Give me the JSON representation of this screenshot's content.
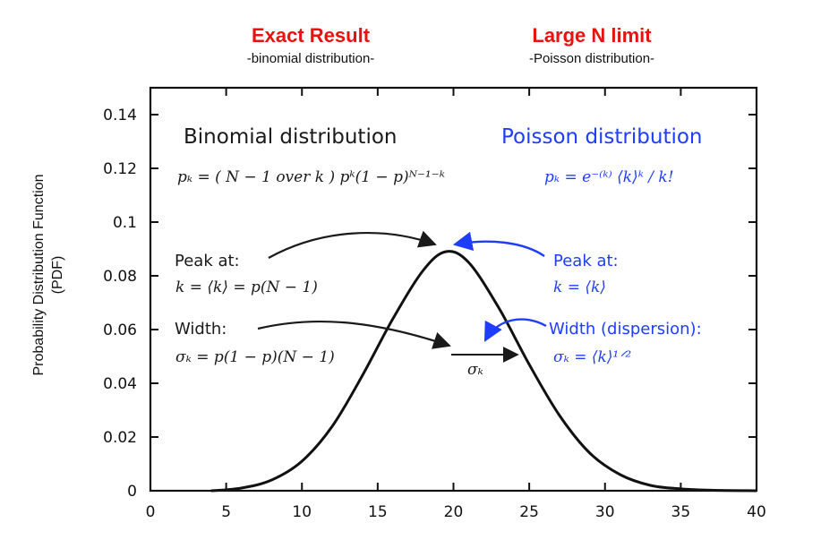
{
  "chart_data": {
    "type": "line",
    "xlim": [
      0,
      40
    ],
    "ylim": [
      0,
      0.15
    ],
    "xticks": [
      "0",
      "5",
      "10",
      "15",
      "20",
      "25",
      "30",
      "35",
      "40"
    ],
    "yticks": [
      "0",
      "0.02",
      "0.04",
      "0.06",
      "0.08",
      "0.1",
      "0.12",
      "0.14"
    ],
    "ylabel_line1": "Probability Distribution Function",
    "ylabel_line2": "(PDF)",
    "grid": false,
    "series": [
      {
        "x": [
          4,
          6,
          8,
          10,
          12,
          14,
          16,
          18,
          19.5,
          21,
          23,
          25,
          27,
          29,
          31,
          33,
          35,
          37,
          40
        ],
        "y": [
          0.0,
          0.001,
          0.004,
          0.011,
          0.024,
          0.043,
          0.064,
          0.082,
          0.089,
          0.085,
          0.068,
          0.047,
          0.028,
          0.014,
          0.006,
          0.002,
          0.0007,
          0.0002,
          0.0
        ]
      }
    ],
    "color": "#111111"
  },
  "headers": {
    "left_title": "Exact Result",
    "left_sub": "-binomial distribution-",
    "right_title": "Large N limit",
    "right_sub": "-Poisson distribution-"
  },
  "annotations": {
    "binomial_title": "Binomial distribution",
    "binomial_formula": "pₖ = ( N − 1 over k ) pᵏ(1 − p)ᴺ⁻¹⁻ᵏ",
    "poisson_title": "Poisson distribution",
    "poisson_formula": "pₖ = e⁻⁽ᵏ⁾ ⟨k⟩ᵏ / k!",
    "peak_label_left": "Peak at:",
    "peak_formula_left": "k = ⟨k⟩ = p(N − 1)",
    "width_label_left": "Width:",
    "width_formula_left": "σₖ = p(1 − p)(N − 1)",
    "sigma_label": "σₖ",
    "peak_label_right": "Peak at:",
    "peak_formula_right": "k = ⟨k⟩",
    "width_label_right": "Width (dispersion):",
    "width_formula_right": "σₖ = ⟨k⟩¹ᐟ²"
  },
  "colors": {
    "exact": "#e8120f",
    "poisson": "#1f3dff",
    "ink": "#1a1a1a"
  }
}
